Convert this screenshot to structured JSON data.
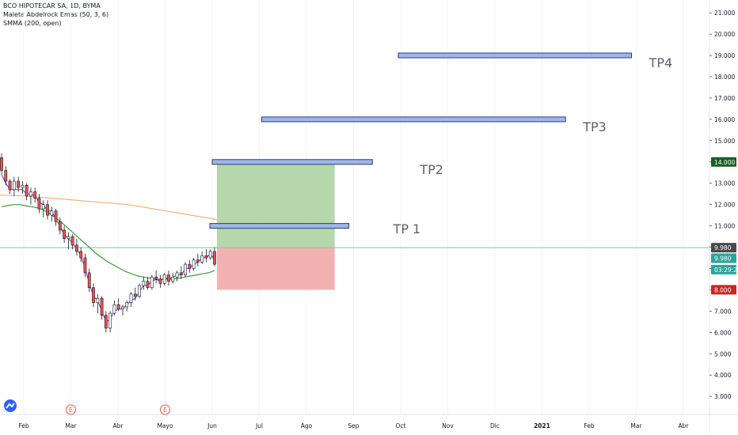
{
  "legend": {
    "symbol": "BCO HIPOTECAR SA, 1D, BYMA",
    "indicator1": "Maleta Abdelrock Emas (50, 3, 6)",
    "indicator2": "SMMA (200, open)"
  },
  "colors": {
    "up": "#26a69a",
    "down": "#ef5350",
    "candle_body_up": "#ffffff",
    "ema_purple": "#5b3fd6",
    "sma_green": "#3c9a3c",
    "smma_orange": "#f4a261",
    "profit_zone": "#a9cf9c",
    "loss_zone": "#f2a3a3",
    "tp_bar": "#9fb6e6",
    "tp_border": "#2a3f7a",
    "price_line": "#7fbf9f"
  },
  "chart_data": {
    "type": "candlestick",
    "y_axis_ticks": [
      "21.000",
      "20.000",
      "19.000",
      "18.000",
      "17.000",
      "16.000",
      "15.000",
      "14.000",
      "13.000",
      "12.000",
      "11.000",
      "10.000",
      "9.000",
      "8.000",
      "7.000",
      "6.000",
      "5.000",
      "4.000",
      "3.000"
    ],
    "ylim": [
      2.3,
      21.6
    ],
    "x_axis_ticks": [
      "Feb",
      "Mar",
      "Abr",
      "Mayo",
      "Jun",
      "Jul",
      "Ago",
      "Sep",
      "Oct",
      "Nov",
      "Dic",
      "2021",
      "Feb",
      "Mar",
      "Abr"
    ],
    "x_axis_tick_index": [
      0,
      1,
      2,
      3,
      4,
      5,
      6,
      7,
      8,
      9,
      10,
      11,
      12,
      13,
      14
    ],
    "events": [
      {
        "label": "E",
        "month": "Mar"
      },
      {
        "label": "E",
        "month": "Mayo"
      }
    ],
    "tp_levels": [
      {
        "label": "TP 1",
        "price": 11.0,
        "start_month": 3.95,
        "end_month": 6.9
      },
      {
        "label": "TP2",
        "price": 14.0,
        "start_month": 4.0,
        "end_month": 7.4
      },
      {
        "label": "TP3",
        "price": 16.0,
        "start_month": 5.05,
        "end_month": 11.5
      },
      {
        "label": "TP4",
        "price": 19.0,
        "start_month": 7.95,
        "end_month": 12.9
      }
    ],
    "position": {
      "entry": 9.98,
      "target": 14.0,
      "stop": 8.0,
      "start_month": 4.1,
      "end_month": 6.6
    },
    "price_tags": [
      {
        "text": "14.000",
        "price": 14.0,
        "kind": "target"
      },
      {
        "text": "9.980",
        "price": 9.98,
        "kind": "entry"
      },
      {
        "text": "9.980",
        "price": 9.48,
        "kind": "last"
      },
      {
        "text": "03:29:28",
        "price": 8.95,
        "kind": "countdown"
      },
      {
        "text": "8.000",
        "price": 8.0,
        "kind": "stop"
      }
    ],
    "candles": [
      [
        14.2,
        14.4,
        13.4,
        13.6
      ],
      [
        13.6,
        13.8,
        12.9,
        13.1
      ],
      [
        13.1,
        13.2,
        12.5,
        12.7
      ],
      [
        12.7,
        13.3,
        12.4,
        13.1
      ],
      [
        13.1,
        13.3,
        12.6,
        12.8
      ],
      [
        12.8,
        13.1,
        12.5,
        12.9
      ],
      [
        12.9,
        13.0,
        12.2,
        12.4
      ],
      [
        12.4,
        12.8,
        12.0,
        12.6
      ],
      [
        12.6,
        12.8,
        12.1,
        12.3
      ],
      [
        12.3,
        12.5,
        11.6,
        11.8
      ],
      [
        11.8,
        12.2,
        11.4,
        12.0
      ],
      [
        12.0,
        12.2,
        11.3,
        11.5
      ],
      [
        11.5,
        11.9,
        11.2,
        11.7
      ],
      [
        11.7,
        11.8,
        11.0,
        11.2
      ],
      [
        11.2,
        11.4,
        10.6,
        10.8
      ],
      [
        10.8,
        11.0,
        10.2,
        10.4
      ],
      [
        10.4,
        10.7,
        9.9,
        10.5
      ],
      [
        10.5,
        10.6,
        9.9,
        10.1
      ],
      [
        10.1,
        10.4,
        9.6,
        9.8
      ],
      [
        9.8,
        10.0,
        9.3,
        9.5
      ],
      [
        9.5,
        9.7,
        8.6,
        8.8
      ],
      [
        8.8,
        9.0,
        7.9,
        8.1
      ],
      [
        8.1,
        8.3,
        7.2,
        7.4
      ],
      [
        7.4,
        7.8,
        6.9,
        7.6
      ],
      [
        7.6,
        7.7,
        6.6,
        6.8
      ],
      [
        6.8,
        7.0,
        6.0,
        6.2
      ],
      [
        6.2,
        7.0,
        6.0,
        6.9
      ],
      [
        6.9,
        7.5,
        6.8,
        7.3
      ],
      [
        7.3,
        7.6,
        7.0,
        7.1
      ],
      [
        7.1,
        7.3,
        6.8,
        7.2
      ],
      [
        7.2,
        7.5,
        7.0,
        7.4
      ],
      [
        7.4,
        7.9,
        7.2,
        7.8
      ],
      [
        7.8,
        8.1,
        7.5,
        7.7
      ],
      [
        7.7,
        8.3,
        7.6,
        8.2
      ],
      [
        8.2,
        8.6,
        8.0,
        8.4
      ],
      [
        8.4,
        8.6,
        8.0,
        8.1
      ],
      [
        8.1,
        8.7,
        8.0,
        8.6
      ],
      [
        8.6,
        8.9,
        8.3,
        8.5
      ],
      [
        8.5,
        8.7,
        8.1,
        8.3
      ],
      [
        8.3,
        8.8,
        8.2,
        8.7
      ],
      [
        8.7,
        8.9,
        8.2,
        8.4
      ],
      [
        8.4,
        8.8,
        8.3,
        8.6
      ],
      [
        8.6,
        8.9,
        8.4,
        8.8
      ],
      [
        8.8,
        9.1,
        8.5,
        8.7
      ],
      [
        8.7,
        9.3,
        8.6,
        9.2
      ],
      [
        9.2,
        9.4,
        8.8,
        9.0
      ],
      [
        9.0,
        9.5,
        8.9,
        9.4
      ],
      [
        9.4,
        9.7,
        9.1,
        9.3
      ],
      [
        9.3,
        9.8,
        9.2,
        9.6
      ],
      [
        9.6,
        9.9,
        9.3,
        9.5
      ],
      [
        9.5,
        9.9,
        9.4,
        9.8
      ],
      [
        9.8,
        10.0,
        9.1,
        9.2
      ]
    ],
    "ema_purple": [
      13.4,
      13.0,
      12.7,
      12.7,
      12.7,
      12.7,
      12.5,
      12.5,
      12.4,
      12.1,
      12.0,
      11.7,
      11.7,
      11.3,
      11.0,
      10.6,
      10.4,
      10.2,
      9.9,
      9.6,
      9.0,
      8.3,
      7.7,
      7.5,
      7.0,
      6.5,
      6.6,
      7.0,
      7.1,
      7.1,
      7.3,
      7.5,
      7.6,
      7.9,
      8.2,
      8.2,
      8.4,
      8.5,
      8.4,
      8.6,
      8.5,
      8.6,
      8.7,
      8.7,
      9.0,
      9.0,
      9.2,
      9.3,
      9.5,
      9.5,
      9.7,
      9.4
    ],
    "sma_green": [
      11.9,
      11.95,
      12.0,
      12.0,
      11.95,
      11.9,
      11.85,
      11.75,
      11.6,
      11.4,
      11.2,
      10.95,
      10.7,
      10.45,
      10.2,
      9.95,
      9.7,
      9.5,
      9.3,
      9.15,
      9.0,
      8.85,
      8.75,
      8.65,
      8.6,
      8.55,
      8.5,
      8.5,
      8.5,
      8.5,
      8.55,
      8.6,
      8.65,
      8.7,
      8.75,
      8.8,
      8.9
    ],
    "smma_orange": [
      12.45,
      12.42,
      12.4,
      12.35,
      12.3,
      12.25,
      12.2,
      12.15,
      12.1,
      12.05,
      12.0,
      11.9,
      11.8,
      11.7,
      11.6,
      11.5,
      11.4,
      11.3
    ]
  }
}
